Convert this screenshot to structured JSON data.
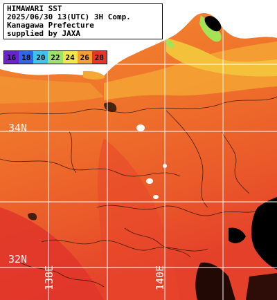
{
  "header": {
    "line1": "HIMAWARI SST",
    "line2": "2025/06/30 13(UTC) 3H Comp.",
    "line3": "Kanagawa Prefecture",
    "line4": "supplied by JAXA"
  },
  "colorbar": {
    "ticks": [
      "16",
      "18",
      "20",
      "22",
      "24",
      "26",
      "28"
    ],
    "colors": [
      "#6a22c9",
      "#2f66e6",
      "#3fc3ea",
      "#9fe06a",
      "#f0e64a",
      "#f5a030",
      "#e8352a"
    ]
  },
  "grid_labels": {
    "lat_34": "34N",
    "lat_32": "32N",
    "lon_138": "138E",
    "lon_140": "140E"
  },
  "colors": {
    "sea_north": "#f2822e",
    "sea_mid": "#ee6e2a",
    "sea_south": "#e8452a",
    "land": "#ffffff",
    "missing": "#000000",
    "grid": "#ffffff",
    "coast_warm": "#f3c23a",
    "coast_cool": "#a6e255"
  }
}
